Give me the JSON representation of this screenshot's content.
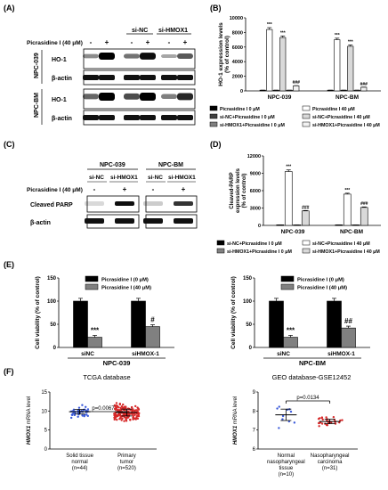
{
  "panels": {
    "A": "(A)",
    "B": "(B)",
    "C": "(C)",
    "D": "(D)",
    "E": "(E)",
    "F": "(F)"
  },
  "blotA": {
    "group_left": "si-NC",
    "group_right": "si-HMOX1",
    "treatment_label": "Picrasidine I (40 μM)",
    "signs": [
      "-",
      "+",
      "-",
      "+",
      "-",
      "+"
    ],
    "rows": [
      {
        "cell": "NPC-039",
        "bands": [
          "HO-1",
          "β-actin"
        ]
      },
      {
        "cell": "NPC-BM",
        "bands": [
          "HO-1",
          "β-actin"
        ]
      }
    ]
  },
  "blotC": {
    "groups": [
      "NPC-039",
      "NPC-BM"
    ],
    "sub_left": "si-NC",
    "sub_right": "si-HMOX1",
    "treatment_label": "Picrasidine I (40 μM)",
    "signs": [
      "-",
      "+",
      "-",
      "+"
    ],
    "bands": [
      "Cleaved PARP",
      "β-actin"
    ]
  },
  "chart_data": [
    {
      "panel": "B",
      "type": "bar",
      "ylabel": "HO-1 expression levels\n(% of control)",
      "ylim": [
        0,
        10000
      ],
      "yticks": [
        "0",
        "2000",
        "4000",
        "6000",
        "8000",
        "10000"
      ],
      "categories": [
        "NPC-039",
        "NPC-BM"
      ],
      "series": [
        {
          "name": "Picrasidine I 0 μM",
          "color": "#000000",
          "values": [
            100,
            100
          ]
        },
        {
          "name": "Picrasidine I 40 μM",
          "color": "#ffffff",
          "values": [
            8400,
            7000
          ]
        },
        {
          "name": "si-NC+Picrasidine I 0 μM",
          "color": "#404040",
          "values": [
            100,
            100
          ]
        },
        {
          "name": "si-NC+Picrasidine I 40 μM",
          "color": "#d9d9d9",
          "values": [
            7300,
            6100
          ]
        },
        {
          "name": "si-HMOX1+Picrasidine I 0 μM",
          "color": "#808080",
          "values": [
            100,
            100
          ]
        },
        {
          "name": "si-HMOX1+Picrasidine I 40 μM",
          "color": "#f2f2f2",
          "values": [
            700,
            500
          ]
        }
      ],
      "annotations": [
        "***",
        "***",
        "###",
        "***",
        "***",
        "###"
      ]
    },
    {
      "panel": "D",
      "type": "bar",
      "ylabel": "Cleaved-PARP\nexpression levels\n(% of control)",
      "ylim": [
        0,
        12000
      ],
      "yticks": [
        "0",
        "3000",
        "6000",
        "9000",
        "12000"
      ],
      "categories": [
        "NPC-039",
        "NPC-BM"
      ],
      "series": [
        {
          "name": "si-NC+Picrasidine I 0 μM",
          "color": "#000000",
          "values": [
            100,
            100
          ]
        },
        {
          "name": "si-NC+Picrasidine I 40 μM",
          "color": "#ffffff",
          "values": [
            9300,
            5400
          ]
        },
        {
          "name": "si-HMOX1+Picrasidine I 0 μM",
          "color": "#808080",
          "values": [
            100,
            100
          ]
        },
        {
          "name": "si-HMOX1+Picrasidine I 40 μM",
          "color": "#d9d9d9",
          "values": [
            2500,
            3100
          ]
        }
      ],
      "annotations": [
        "***",
        "###",
        "***",
        "###"
      ]
    },
    {
      "panel": "E-left",
      "type": "bar",
      "ylabel": "Cell viability (% of control)",
      "ylim": [
        0,
        150
      ],
      "yticks": [
        "0",
        "50",
        "100",
        "150"
      ],
      "categories": [
        "siNC",
        "siHMOX-1"
      ],
      "xlabel": "NPC-039",
      "series": [
        {
          "name": "Picrasidine I (0 μM)",
          "color": "#000000",
          "values": [
            100,
            100
          ]
        },
        {
          "name": "Picrasidine I (40 μM)",
          "color": "#808080",
          "values": [
            22,
            45
          ]
        }
      ],
      "annotations": [
        "***",
        "#"
      ]
    },
    {
      "panel": "E-right",
      "type": "bar",
      "ylabel": "Cell viability (% of control)",
      "ylim": [
        0,
        150
      ],
      "yticks": [
        "0",
        "50",
        "100",
        "150"
      ],
      "categories": [
        "siNC",
        "siHMOX-1"
      ],
      "xlabel": "NPC-BM",
      "series": [
        {
          "name": "Picrasidine I (0 μM)",
          "color": "#000000",
          "values": [
            100,
            100
          ]
        },
        {
          "name": "Picrasidine I (40 μM)",
          "color": "#808080",
          "values": [
            22,
            42
          ]
        }
      ],
      "annotations": [
        "***",
        "##"
      ]
    },
    {
      "panel": "F-left",
      "type": "scatter",
      "title": "TCGA database",
      "ylabel": "HMOX1 mRNA level",
      "ylim": [
        0,
        15
      ],
      "yticks": [
        "0",
        "5",
        "10",
        "15"
      ],
      "categories": [
        "Solid tissue\nnormal\n(n=44)",
        "Primary\ntumor\n(n=520)"
      ],
      "series": [
        {
          "name": "Solid tissue normal",
          "color": "#3b5bdb",
          "mean": 9.8,
          "spread": 1.0
        },
        {
          "name": "Primary tumor",
          "color": "#d62828",
          "mean": 9.6,
          "spread": 1.5
        }
      ],
      "pvalue": "p=0.0067"
    },
    {
      "panel": "F-right",
      "type": "scatter",
      "title": "GEO database-GSE12452",
      "ylabel": "HMOX1 mRNA level",
      "ylim": [
        6,
        9
      ],
      "yticks": [
        "6",
        "7",
        "8",
        "9"
      ],
      "categories": [
        "Normal\nnasopharyngeal\ntissue\n(n=10)",
        "Nasopharyngeal\ncarcinoma\n(n=31)"
      ],
      "series": [
        {
          "name": "Normal nasopharyngeal tissue",
          "color": "#3b5bdb",
          "mean": 7.8,
          "spread": 0.5
        },
        {
          "name": "Nasopharyngeal carcinoma",
          "color": "#d62828",
          "mean": 7.45,
          "spread": 0.2
        }
      ],
      "pvalue": "p=0.0134"
    }
  ]
}
